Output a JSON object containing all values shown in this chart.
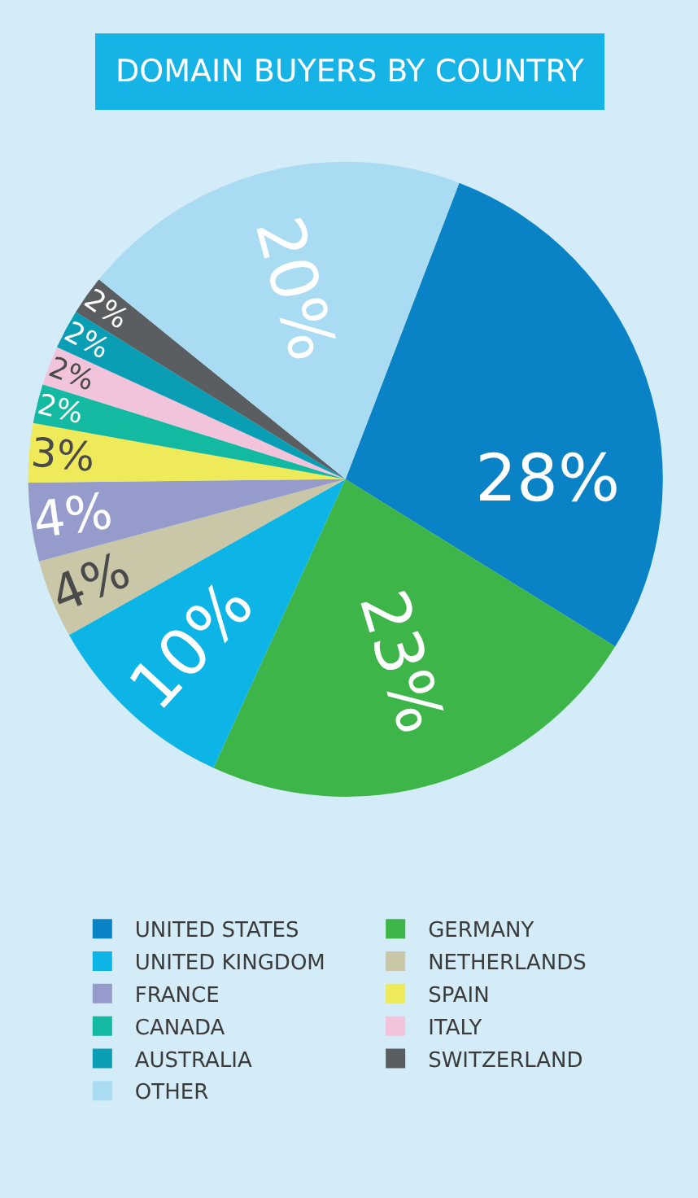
{
  "chart_data": {
    "type": "pie",
    "title": "DOMAIN BUYERS BY COUNTRY",
    "categories": [
      "UNITED STATES",
      "GERMANY",
      "UNITED KINGDOM",
      "NETHERLANDS",
      "FRANCE",
      "SPAIN",
      "CANADA",
      "ITALY",
      "AUSTRALIA",
      "SWITZERLAND",
      "OTHER"
    ],
    "values": [
      28,
      23,
      10,
      4,
      4,
      3,
      2,
      2,
      2,
      2,
      20
    ],
    "value_labels": [
      "28%",
      "23%",
      "10%",
      "4%",
      "4%",
      "3%",
      "2%",
      "2%",
      "2%",
      "2%",
      "20%"
    ],
    "colors": [
      "#0a83c6",
      "#3db549",
      "#0db4e6",
      "#c9c7a8",
      "#959ccb",
      "#eeea5a",
      "#13b9a0",
      "#f2c4dc",
      "#0a9eb5",
      "#5a5e60",
      "#a9dcf2"
    ],
    "legend": "bottom"
  }
}
